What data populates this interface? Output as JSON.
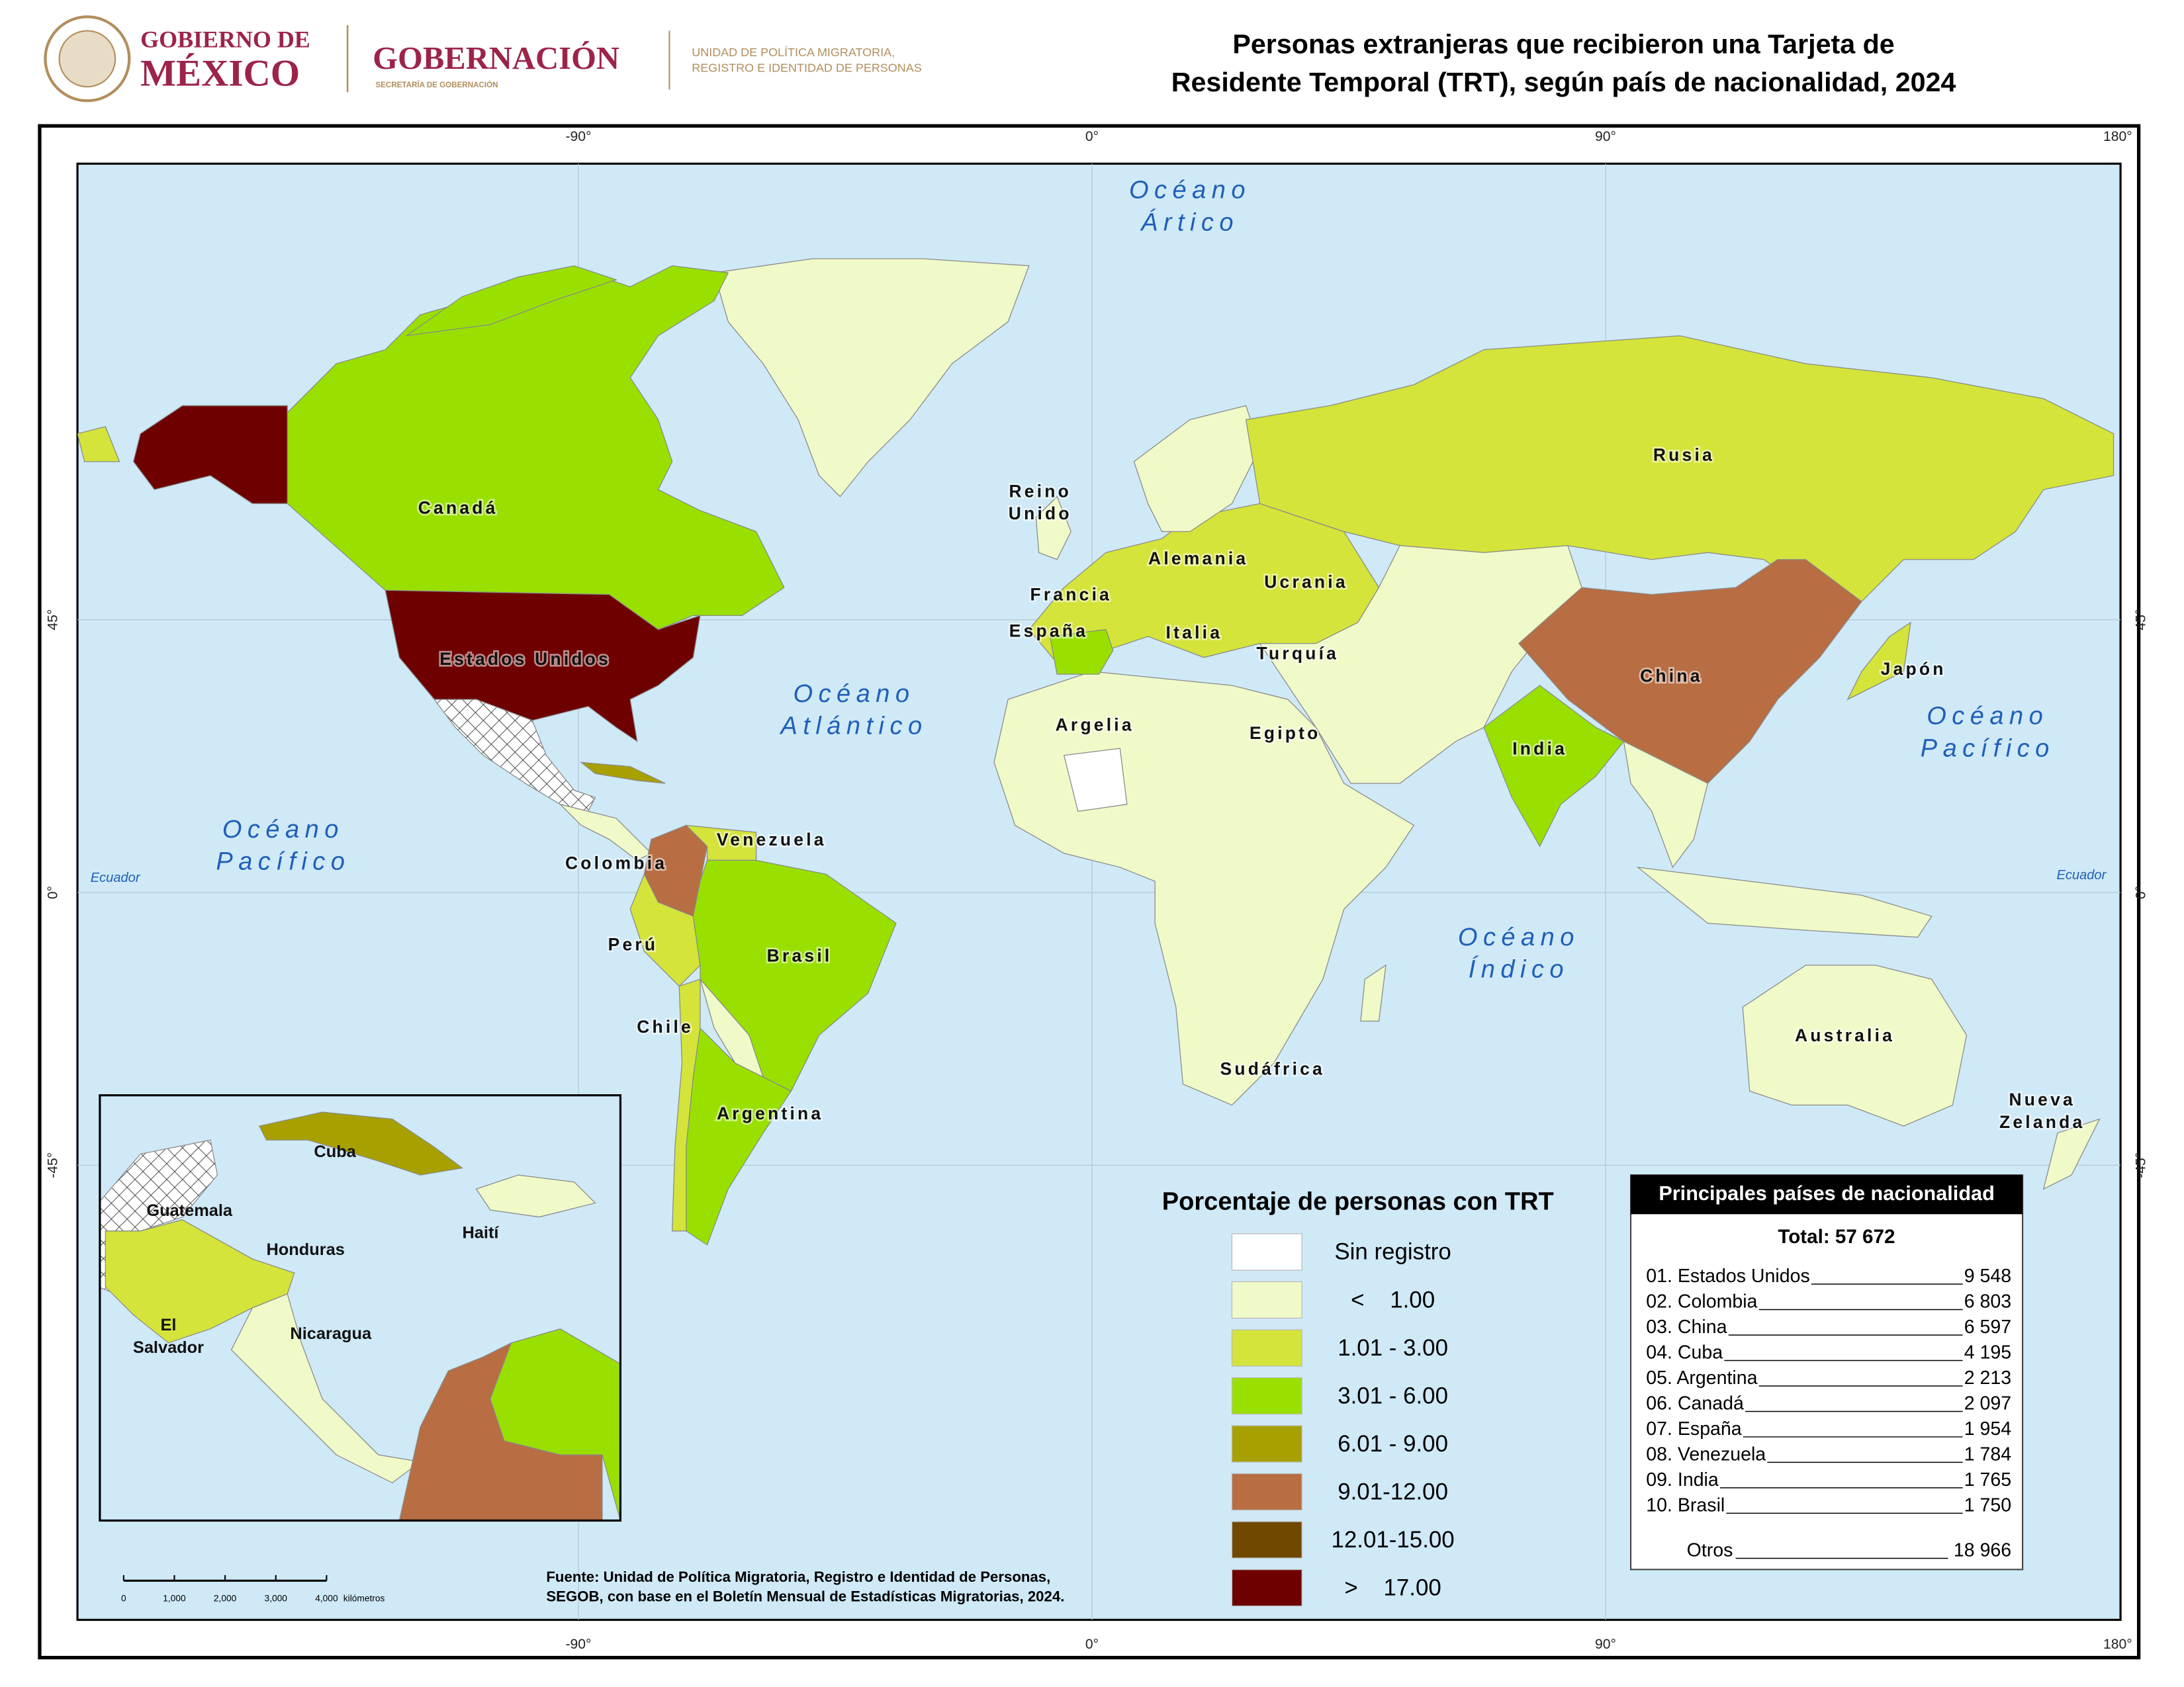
{
  "header": {
    "logo_line1": "GOBIERNO DE",
    "logo_line2": "MÉXICO",
    "ministry": "GOBERNACIÓN",
    "ministry_sub": "SECRETARÍA DE GOBERNACIÓN",
    "unit_line1": "UNIDAD DE POLÍTICA MIGRATORIA,",
    "unit_line2": "REGISTRO E IDENTIDAD DE PERSONAS",
    "title_line1": "Personas extranjeras que recibieron una Tarjeta de",
    "title_line2": "Residente Temporal (TRT), según país de nacionalidad, 2024"
  },
  "map": {
    "longitude_labels": [
      "-90°",
      "0°",
      "90°",
      "180°"
    ],
    "latitude_labels": [
      "45°",
      "0°",
      "-45°"
    ],
    "equator_label": "Ecuador",
    "ocean_labels": [
      {
        "lines": [
          "Océano",
          "Ártico"
        ]
      },
      {
        "lines": [
          "Océano",
          "Atlántico"
        ]
      },
      {
        "lines": [
          "Océano",
          "Pacífico"
        ]
      },
      {
        "lines": [
          "Océano",
          "Índico"
        ]
      },
      {
        "lines": [
          "Océano",
          "Pacífico"
        ]
      }
    ],
    "country_labels": [
      {
        "lines": [
          "Canadá"
        ]
      },
      {
        "lines": [
          "Estados Unidos"
        ]
      },
      {
        "lines": [
          "Reino",
          "Unido"
        ]
      },
      {
        "lines": [
          "Alemania"
        ]
      },
      {
        "lines": [
          "Francia"
        ]
      },
      {
        "lines": [
          "España"
        ]
      },
      {
        "lines": [
          "Italia"
        ]
      },
      {
        "lines": [
          "Ucrania"
        ]
      },
      {
        "lines": [
          "Turquía"
        ]
      },
      {
        "lines": [
          "Rusia"
        ]
      },
      {
        "lines": [
          "China"
        ]
      },
      {
        "lines": [
          "Japón"
        ]
      },
      {
        "lines": [
          "India"
        ]
      },
      {
        "lines": [
          "Argelia"
        ]
      },
      {
        "lines": [
          "Egipto"
        ]
      },
      {
        "lines": [
          "Venezuela"
        ]
      },
      {
        "lines": [
          "Colombia"
        ]
      },
      {
        "lines": [
          "Perú"
        ]
      },
      {
        "lines": [
          "Brasil"
        ]
      },
      {
        "lines": [
          "Chile"
        ]
      },
      {
        "lines": [
          "Argentina"
        ]
      },
      {
        "lines": [
          "Sudáfrica"
        ]
      },
      {
        "lines": [
          "Australia"
        ]
      },
      {
        "lines": [
          "Nueva",
          "Zelanda"
        ]
      }
    ],
    "inset_labels": [
      {
        "lines": [
          "Cuba"
        ]
      },
      {
        "lines": [
          "Guatemala"
        ]
      },
      {
        "lines": [
          "Honduras"
        ]
      },
      {
        "lines": [
          "Haití"
        ]
      },
      {
        "lines": [
          "El",
          "Salvador"
        ]
      },
      {
        "lines": [
          "Nicaragua"
        ]
      }
    ],
    "scale_labels": [
      "0",
      "1,000",
      "2,000",
      "3,000",
      "4,000"
    ],
    "scale_unit": "kilómetros"
  },
  "legend": {
    "title": "Porcentaje de personas con TRT",
    "items": [
      {
        "label": "Sin registro",
        "color": "#ffffff"
      },
      {
        "label": "<    1.00",
        "color": "#f0fac8"
      },
      {
        "label": "1.01 - 3.00",
        "color": "#d4e43a"
      },
      {
        "label": "3.01 - 6.00",
        "color": "#99e000"
      },
      {
        "label": "6.01 - 9.00",
        "color": "#a8a000"
      },
      {
        "label": "9.01-12.00",
        "color": "#b86d42"
      },
      {
        "label": "12.01-15.00",
        "color": "#704800"
      },
      {
        "label": ">    17.00",
        "color": "#6e0000"
      }
    ]
  },
  "table": {
    "title": "Principales países de nacionalidad",
    "total": "Total: 57 672",
    "rows": [
      [
        "01. Estados Unidos",
        "9 548"
      ],
      [
        "02. Colombia",
        "6 803"
      ],
      [
        "03. China",
        "6 597"
      ],
      [
        "04. Cuba",
        "4 195"
      ],
      [
        "05. Argentina",
        "2 213"
      ],
      [
        "06. Canadá",
        "2 097"
      ],
      [
        "07. España",
        "1 954"
      ],
      [
        "08. Venezuela",
        "1 784"
      ],
      [
        "09. India",
        "1 765"
      ],
      [
        "10. Brasil",
        "1 750"
      ]
    ],
    "others": [
      "Otros",
      "18 966"
    ]
  },
  "source": {
    "line1": "Fuente: Unidad de Política Migratoria, Registro e Identidad de Personas,",
    "line2": "SEGOB, con base en el Boletín Mensual de Estadísticas Migratorias, 2024."
  }
}
